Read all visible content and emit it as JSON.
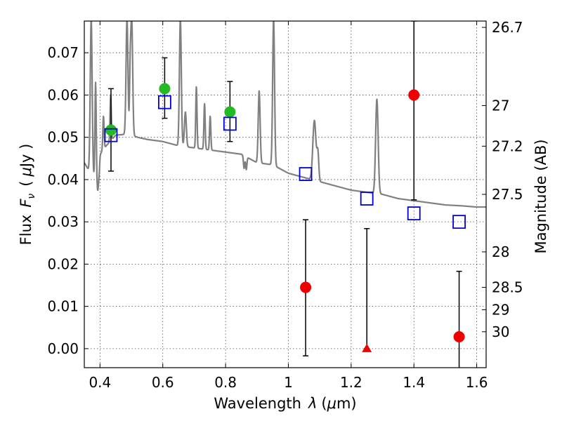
{
  "chart_data": {
    "type": "scatter",
    "xlabel_prefix": "Wavelength",
    "xlabel_symbol": "λ",
    "xlabel_unit_open": "(",
    "xlabel_unit_mu": "μ",
    "xlabel_unit_rest": "m)",
    "ylabel_prefix": "Flux",
    "ylabel_symbol": "F",
    "ylabel_sub": "ν",
    "ylabel_unit_open": "(",
    "ylabel_unit_mu": "μ",
    "ylabel_unit_rest": "Jy )",
    "y2label": "Magnitude (AB)",
    "xlim": [
      0.35,
      1.63
    ],
    "ylim": [
      -0.0045,
      0.0775
    ],
    "xticks": [
      {
        "v": 0.4,
        "label": "0.4"
      },
      {
        "v": 0.6,
        "label": "0.6"
      },
      {
        "v": 0.8,
        "label": "0.8"
      },
      {
        "v": 1.0,
        "label": "1"
      },
      {
        "v": 1.2,
        "label": "1.2"
      },
      {
        "v": 1.4,
        "label": "1.4"
      },
      {
        "v": 1.6,
        "label": "1.6"
      }
    ],
    "yticks": [
      {
        "v": 0.0,
        "label": "0.00"
      },
      {
        "v": 0.01,
        "label": "0.01"
      },
      {
        "v": 0.02,
        "label": "0.02"
      },
      {
        "v": 0.03,
        "label": "0.03"
      },
      {
        "v": 0.04,
        "label": "0.04"
      },
      {
        "v": 0.05,
        "label": "0.05"
      },
      {
        "v": 0.06,
        "label": "0.06"
      },
      {
        "v": 0.07,
        "label": "0.07"
      }
    ],
    "mag_ticks": [
      {
        "flux": 0.076,
        "label": "26.7"
      },
      {
        "flux": 0.0575,
        "label": "27"
      },
      {
        "flux": 0.0479,
        "label": "27.2"
      },
      {
        "flux": 0.0365,
        "label": "27.5"
      },
      {
        "flux": 0.0229,
        "label": "28"
      },
      {
        "flux": 0.0145,
        "label": "28.5"
      },
      {
        "flux": 0.0092,
        "label": "29"
      },
      {
        "flux": 0.004,
        "label": "30"
      }
    ],
    "model_color": "#808080",
    "model_continuum": [
      [
        0.35,
        0.044
      ],
      [
        0.37,
        0.0415
      ],
      [
        0.39,
        0.04
      ],
      [
        0.4,
        0.046
      ],
      [
        0.42,
        0.048
      ],
      [
        0.45,
        0.0505
      ],
      [
        0.48,
        0.0507
      ],
      [
        0.5,
        0.0505
      ],
      [
        0.52,
        0.05
      ],
      [
        0.55,
        0.0495
      ],
      [
        0.6,
        0.049
      ],
      [
        0.65,
        0.048
      ],
      [
        0.7,
        0.0475
      ],
      [
        0.75,
        0.047
      ],
      [
        0.8,
        0.0465
      ],
      [
        0.85,
        0.046
      ],
      [
        0.9,
        0.044
      ],
      [
        0.95,
        0.0435
      ],
      [
        1.0,
        0.0415
      ],
      [
        1.05,
        0.0405
      ],
      [
        1.1,
        0.0395
      ],
      [
        1.15,
        0.0385
      ],
      [
        1.2,
        0.0375
      ],
      [
        1.25,
        0.037
      ],
      [
        1.3,
        0.0365
      ],
      [
        1.35,
        0.0355
      ],
      [
        1.4,
        0.035
      ],
      [
        1.45,
        0.0345
      ],
      [
        1.5,
        0.034
      ],
      [
        1.55,
        0.0338
      ],
      [
        1.6,
        0.0335
      ],
      [
        1.63,
        0.0335
      ]
    ],
    "model_lines": [
      {
        "x": 0.372,
        "peak": 0.078,
        "w": 0.003
      },
      {
        "x": 0.386,
        "peak": 0.063,
        "w": 0.002
      },
      {
        "x": 0.411,
        "peak": 0.055,
        "w": 0.002
      },
      {
        "x": 0.434,
        "peak": 0.06,
        "w": 0.002
      },
      {
        "x": 0.486,
        "peak": 0.078,
        "w": 0.003
      },
      {
        "x": 0.496,
        "peak": 0.063,
        "w": 0.002
      },
      {
        "x": 0.501,
        "peak": 0.078,
        "w": 0.003
      },
      {
        "x": 0.656,
        "peak": 0.078,
        "w": 0.003
      },
      {
        "x": 0.672,
        "peak": 0.056,
        "w": 0.003
      },
      {
        "x": 0.707,
        "peak": 0.062,
        "w": 0.002
      },
      {
        "x": 0.733,
        "peak": 0.058,
        "w": 0.002
      },
      {
        "x": 0.751,
        "peak": 0.055,
        "w": 0.002
      },
      {
        "x": 0.907,
        "peak": 0.061,
        "w": 0.003
      },
      {
        "x": 0.953,
        "peak": 0.078,
        "w": 0.003
      },
      {
        "x": 1.083,
        "peak": 0.054,
        "w": 0.005
      },
      {
        "x": 1.094,
        "peak": 0.046,
        "w": 0.003
      },
      {
        "x": 1.282,
        "peak": 0.059,
        "w": 0.004
      }
    ],
    "model_absorptions": [
      {
        "x": 0.393,
        "depth": 0.004,
        "w": 0.002
      },
      {
        "x": 0.397,
        "depth": 0.003,
        "w": 0.002
      },
      {
        "x": 0.859,
        "depth": 0.003,
        "w": 0.002
      },
      {
        "x": 0.866,
        "depth": 0.003,
        "w": 0.002
      }
    ],
    "series": [
      {
        "name": "observed-green",
        "color": "#22bb22",
        "marker": "circle",
        "points": [
          {
            "x": 0.435,
            "y": 0.0517,
            "lo": 0.042,
            "hi": 0.0615
          },
          {
            "x": 0.606,
            "y": 0.0615,
            "lo": 0.0545,
            "hi": 0.0688
          },
          {
            "x": 0.814,
            "y": 0.056,
            "lo": 0.049,
            "hi": 0.0632
          }
        ]
      },
      {
        "name": "observed-red",
        "color": "#ee0000",
        "marker": "circle",
        "points": [
          {
            "x": 1.055,
            "y": 0.0145,
            "lo": -0.0017,
            "hi": 0.0305
          },
          {
            "x": 1.4,
            "y": 0.06,
            "lo": 0.0352,
            "hi": 0.0775
          },
          {
            "x": 1.544,
            "y": 0.0028,
            "lo": -0.0045,
            "hi": 0.0183
          }
        ]
      },
      {
        "name": "upper-limit",
        "color": "#ee0000",
        "marker": "triangle",
        "points": [
          {
            "x": 1.25,
            "y": 0.0,
            "lo": 0.0,
            "hi": 0.0284
          }
        ]
      },
      {
        "name": "model-photometry",
        "color": "#0000dd",
        "marker": "square",
        "points": [
          {
            "x": 0.435,
            "y": 0.0505
          },
          {
            "x": 0.606,
            "y": 0.0583
          },
          {
            "x": 0.814,
            "y": 0.0532
          },
          {
            "x": 1.055,
            "y": 0.0413
          },
          {
            "x": 1.25,
            "y": 0.0355
          },
          {
            "x": 1.4,
            "y": 0.032
          },
          {
            "x": 1.544,
            "y": 0.03
          }
        ]
      }
    ]
  }
}
